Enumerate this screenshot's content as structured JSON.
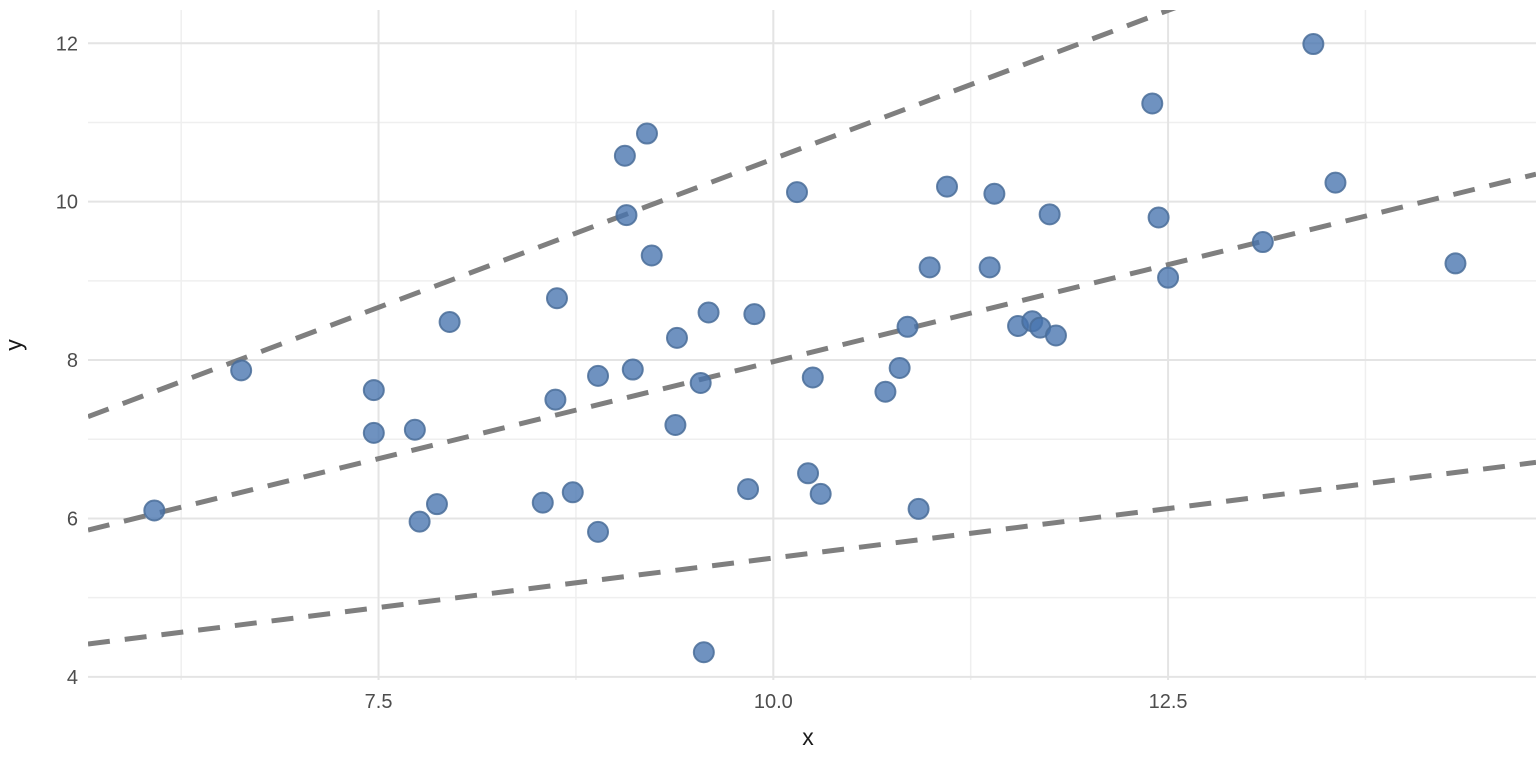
{
  "chart_data": {
    "type": "scatter",
    "title": "",
    "xlabel": "x",
    "ylabel": "y",
    "xlim": [
      5.66,
      14.83
    ],
    "ylim": [
      3.96,
      12.42
    ],
    "x_major_ticks": [
      7.5,
      10.0,
      12.5
    ],
    "x_tick_labels": [
      "7.5",
      "10.0",
      "12.5"
    ],
    "x_minor_ticks": [
      6.25,
      8.75,
      11.25,
      13.75
    ],
    "y_major_ticks": [
      4,
      6,
      8,
      10,
      12
    ],
    "y_tick_labels": [
      "4",
      "6",
      "8",
      "10",
      "12"
    ],
    "y_minor_ticks": [
      5,
      7,
      9,
      11
    ],
    "grid": true,
    "legend": false,
    "points": [
      [
        6.08,
        6.1
      ],
      [
        6.63,
        7.87
      ],
      [
        7.47,
        7.62
      ],
      [
        7.47,
        7.08
      ],
      [
        7.73,
        7.12
      ],
      [
        7.76,
        5.96
      ],
      [
        7.87,
        6.18
      ],
      [
        7.95,
        8.48
      ],
      [
        8.54,
        6.2
      ],
      [
        8.62,
        7.5
      ],
      [
        8.63,
        8.78
      ],
      [
        8.73,
        6.33
      ],
      [
        8.89,
        7.8
      ],
      [
        8.89,
        5.83
      ],
      [
        9.06,
        10.58
      ],
      [
        9.07,
        9.83
      ],
      [
        9.11,
        7.88
      ],
      [
        9.2,
        10.86
      ],
      [
        9.23,
        9.32
      ],
      [
        9.38,
        7.18
      ],
      [
        9.39,
        8.28
      ],
      [
        9.54,
        7.71
      ],
      [
        9.56,
        4.31
      ],
      [
        9.59,
        8.6
      ],
      [
        9.84,
        6.37
      ],
      [
        9.88,
        8.58
      ],
      [
        10.15,
        10.12
      ],
      [
        10.22,
        6.57
      ],
      [
        10.25,
        7.78
      ],
      [
        10.3,
        6.31
      ],
      [
        10.71,
        7.6
      ],
      [
        10.8,
        7.9
      ],
      [
        10.85,
        8.42
      ],
      [
        10.92,
        6.12
      ],
      [
        10.99,
        9.17
      ],
      [
        11.1,
        10.19
      ],
      [
        11.37,
        9.17
      ],
      [
        11.4,
        10.1
      ],
      [
        11.55,
        8.43
      ],
      [
        11.64,
        8.49
      ],
      [
        11.69,
        8.41
      ],
      [
        11.79,
        8.31
      ],
      [
        11.75,
        9.84
      ],
      [
        12.4,
        11.24
      ],
      [
        12.44,
        9.8
      ],
      [
        12.5,
        9.04
      ],
      [
        13.1,
        9.49
      ],
      [
        13.42,
        11.99
      ],
      [
        13.56,
        10.24
      ],
      [
        14.32,
        9.22
      ]
    ],
    "lines": [
      {
        "name": "upper-quantile-dashed-line",
        "slope": 0.75,
        "intercept": 3.04,
        "style": "dashed"
      },
      {
        "name": "middle-quantile-dashed-line",
        "slope": 0.49,
        "intercept": 3.08,
        "style": "dashed"
      },
      {
        "name": "lower-quantile-dashed-line",
        "slope": 0.25,
        "intercept": 3.0,
        "style": "dashed"
      }
    ],
    "colors": {
      "background": "#ffffff",
      "grid_major": "#e4e4e4",
      "grid_minor": "#efefef",
      "point_fill": "#4673ae",
      "point_stroke": "#4a6d99",
      "dashed_line": "#7f7f7f",
      "tick_text": "#4d4d4d",
      "axis_title_text": "#1a1a1a"
    }
  }
}
